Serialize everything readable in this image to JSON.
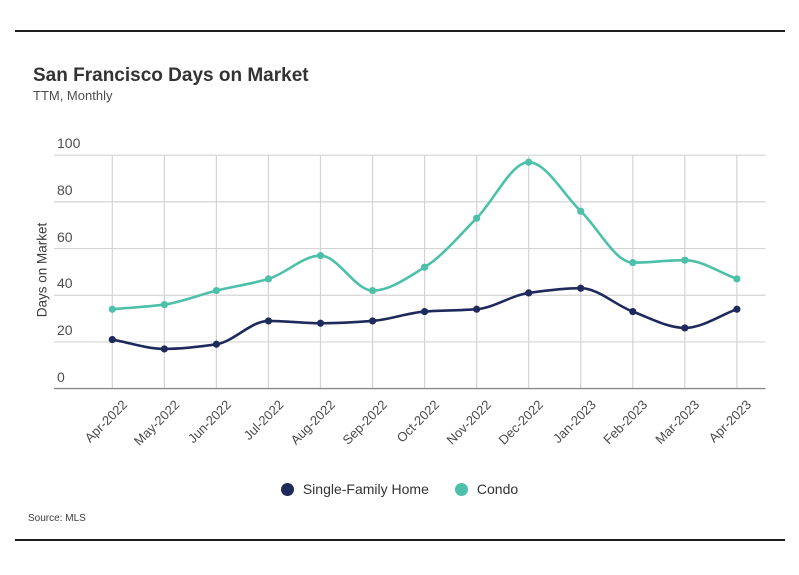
{
  "header": {
    "title": "San Francisco Days on Market",
    "subtitle": "TTM, Monthly"
  },
  "footer": {
    "source": "Source: MLS"
  },
  "legend": {
    "items": [
      {
        "label": "Single-Family Home",
        "color": "#1F2A5C"
      },
      {
        "label": "Condo",
        "color": "#4DC0AA"
      }
    ]
  },
  "colors": {
    "single_family": "#1F2A5C",
    "condo": "#4DC0AA",
    "gridline": "#d4d4d4",
    "zero_axis": "#8a8a8a",
    "border_rule": "#1f1f1f"
  },
  "chart_data": {
    "type": "line",
    "title": "San Francisco Days on Market",
    "subtitle": "TTM, Monthly",
    "xlabel": "",
    "ylabel": "Days on Market",
    "ylim": [
      0,
      100
    ],
    "yticks": [
      0,
      20,
      40,
      60,
      80,
      100
    ],
    "grid": true,
    "legend_position": "bottom-center",
    "categories": [
      "Apr-2022",
      "May-2022",
      "Jun-2022",
      "Jul-2022",
      "Aug-2022",
      "Sep-2022",
      "Oct-2022",
      "Nov-2022",
      "Dec-2022",
      "Jan-2023",
      "Feb-2023",
      "Mar-2023",
      "Apr-2023"
    ],
    "series": [
      {
        "name": "Single-Family Home",
        "color": "#1F2A5C",
        "values": [
          21,
          17,
          19,
          29,
          28,
          29,
          33,
          34,
          41,
          43,
          33,
          26,
          34
        ]
      },
      {
        "name": "Condo",
        "color": "#4DC0AA",
        "values": [
          34,
          36,
          42,
          47,
          57,
          42,
          52,
          73,
          97,
          76,
          54,
          55,
          47
        ]
      }
    ]
  }
}
